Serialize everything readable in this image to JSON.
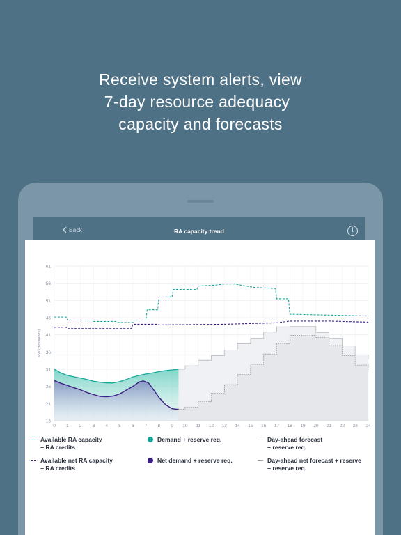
{
  "headline": {
    "line1": "Receive system alerts, view",
    "line2": "7-day resource adequacy",
    "line3": "capacity and forecasts"
  },
  "appbar": {
    "back_label": "Back",
    "title": "RA capacity trend",
    "info_icon": "info-icon",
    "info_glyph": "i"
  },
  "colors": {
    "background": "#4f7186",
    "teal": "#1aa89a",
    "purple": "#3c1f85",
    "forecast": "#b4b7bd"
  },
  "chart_data": {
    "type": "line",
    "ylabel": "MW (thousands)",
    "xlim": [
      0,
      24
    ],
    "ylim": [
      16,
      61
    ],
    "x_ticks": [
      "0",
      "1",
      "2",
      "3",
      "4",
      "5",
      "6",
      "7",
      "8",
      "9",
      "10",
      "11",
      "12",
      "13",
      "14",
      "15",
      "16",
      "17",
      "18",
      "19",
      "20",
      "21",
      "22",
      "23",
      "24"
    ],
    "y_ticks": [
      "16",
      "21",
      "26",
      "31",
      "36",
      "41",
      "46",
      "51",
      "56",
      "61"
    ],
    "grid": true,
    "series": [
      {
        "name": "Available RA capacity + RA credits",
        "style": "dashed",
        "color": "#1aa89a",
        "x": [
          0,
          0.9,
          1.0,
          2.9,
          3.0,
          4.7,
          4.8,
          6.0,
          6.1,
          7.0,
          7.1,
          7.9,
          8.0,
          9.0,
          9.1,
          10.9,
          11.0,
          12.4,
          13.0,
          13.8,
          14.5,
          15.3,
          16.9,
          17.0,
          17.9,
          18.0,
          24
        ],
        "values": [
          46.2,
          46.2,
          45.3,
          45.3,
          44.9,
          44.9,
          44.6,
          44.6,
          45.3,
          45.3,
          48.3,
          48.3,
          52.0,
          52.0,
          54.2,
          54.2,
          55.2,
          55.5,
          55.8,
          55.8,
          55.3,
          54.8,
          54.5,
          51.5,
          51.5,
          47.0,
          46.5
        ]
      },
      {
        "name": "Available net RA capacity + RA credits",
        "style": "dashed",
        "color": "#3c1f85",
        "x": [
          0,
          0.9,
          1.0,
          5.9,
          6.0,
          7.9,
          8.0,
          13.0,
          17.0,
          18.0,
          21.0,
          24
        ],
        "values": [
          43.2,
          43.2,
          42.8,
          42.8,
          44.1,
          44.1,
          43.9,
          44.1,
          44.5,
          45.0,
          45.0,
          44.7
        ]
      },
      {
        "name": "Demand + reserve req.",
        "style": "solid-area",
        "color": "#1aa89a",
        "x": [
          0,
          0.5,
          1,
          1.5,
          2,
          2.5,
          3,
          3.5,
          4,
          4.5,
          5,
          5.5,
          6,
          6.5,
          7,
          7.5,
          8,
          8.5,
          9,
          9.5
        ],
        "values": [
          31.0,
          29.9,
          29.2,
          28.8,
          28.4,
          28.0,
          27.5,
          27.2,
          27.0,
          27.0,
          27.4,
          28.0,
          28.7,
          29.2,
          29.6,
          29.9,
          30.3,
          30.6,
          30.8,
          31.0
        ]
      },
      {
        "name": "Net demand + reserve req.",
        "style": "solid-area",
        "color": "#3c1f85",
        "x": [
          0,
          0.5,
          1,
          1.5,
          2,
          2.5,
          3,
          3.5,
          4,
          4.5,
          5,
          5.5,
          6,
          6.5,
          6.8,
          7.2,
          7.5,
          8,
          8.5,
          9,
          9.5
        ],
        "values": [
          27.7,
          26.9,
          26.3,
          25.6,
          25.0,
          24.2,
          23.6,
          23.1,
          23.0,
          23.2,
          23.8,
          24.9,
          26.0,
          27.3,
          27.6,
          27.0,
          25.5,
          22.8,
          20.7,
          19.5,
          19.3
        ]
      },
      {
        "name": "Day-ahead forecast + reserve req.",
        "style": "step-thin",
        "color": "#b4b7bd",
        "x": [
          9.5,
          10,
          11,
          12,
          13,
          14,
          15,
          16,
          17,
          18,
          19,
          20,
          21,
          22,
          23,
          24
        ],
        "values": [
          31.0,
          32.0,
          33.6,
          35.0,
          36.6,
          38.4,
          40.0,
          41.8,
          43.3,
          43.4,
          43.4,
          41.7,
          40.0,
          37.8,
          35.2,
          33.8
        ]
      },
      {
        "name": "Day-ahead net forecast + reserve + reserve req.",
        "style": "step-dotted",
        "color": "#8c8f96",
        "x": [
          9.5,
          10,
          11,
          12,
          13,
          14,
          15,
          16,
          17,
          18,
          19,
          20,
          21,
          22,
          23,
          24
        ],
        "values": [
          19.3,
          20.0,
          21.6,
          24.0,
          26.5,
          29.5,
          32.4,
          35.4,
          38.4,
          40.8,
          40.8,
          40.2,
          37.9,
          35.0,
          32.2,
          30.5
        ]
      }
    ]
  },
  "legend": [
    {
      "label": "Available RA capacity\n+ RA credits",
      "swatch": "dash",
      "color": "#1aa89a"
    },
    {
      "label": "Demand + reserve req.",
      "swatch": "dot",
      "color": "#1aa89a"
    },
    {
      "label": "Day-ahead forecast\n+ reserve req.",
      "swatch": "thin",
      "color": "#b4b7bd"
    },
    {
      "label": "Available net RA capacity\n+ RA credits",
      "swatch": "dash",
      "color": "#3c1f85"
    },
    {
      "label": "Net demand + reserve req.",
      "swatch": "dot",
      "color": "#3c1f85"
    },
    {
      "label": "Day-ahead net forecast + reserve\n+ reserve req.",
      "swatch": "thin",
      "color": "#9a9ca2"
    }
  ]
}
